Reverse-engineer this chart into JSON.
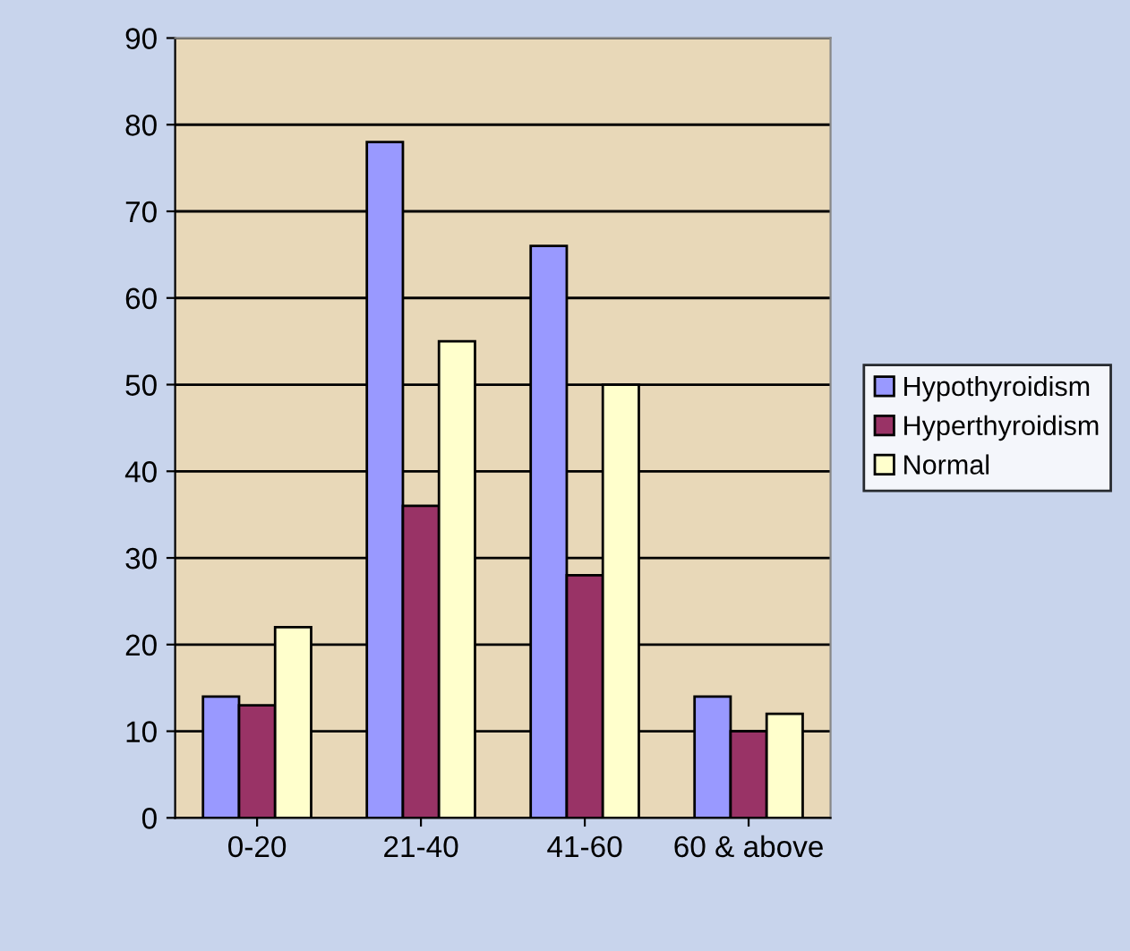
{
  "chart_data": {
    "type": "bar",
    "categories": [
      "0-20",
      "21-40",
      "41-60",
      "60 & above"
    ],
    "series": [
      {
        "name": "Hypothyroidism",
        "color": "#9999ff",
        "values": [
          14,
          78,
          66,
          14
        ]
      },
      {
        "name": "Hyperthyroidism",
        "color": "#993366",
        "values": [
          13,
          36,
          28,
          10
        ]
      },
      {
        "name": "Normal",
        "color": "#ffffcc",
        "values": [
          22,
          55,
          50,
          12
        ]
      }
    ],
    "ylim": [
      0,
      90
    ],
    "yticks": [
      0,
      10,
      20,
      30,
      40,
      50,
      60,
      70,
      80,
      90
    ],
    "grid": "y",
    "legend": "right"
  }
}
